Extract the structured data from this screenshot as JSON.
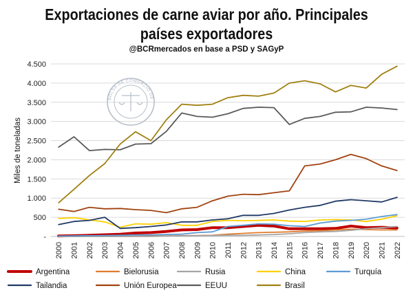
{
  "chart_data": {
    "type": "line",
    "title_line1": "Exportaciones de carne aviar por año. Principales",
    "title_line2": "países exportadores",
    "subtitle": "@BCRmercados  en base a PSD y SAGyP",
    "ylabel": "Miles de toneladas",
    "xlabel": "",
    "ylim": [
      0,
      4500
    ],
    "y_ticks": [
      0,
      500,
      1000,
      1500,
      2000,
      2500,
      3000,
      3500,
      4000,
      4500
    ],
    "y_tick_labels": [
      "-",
      "500",
      "1.000",
      "1.500",
      "2.000",
      "2.500",
      "3.000",
      "3.500",
      "4.000",
      "4.500"
    ],
    "grid": true,
    "legend_position": "bottom",
    "x": [
      "2000",
      "2001",
      "2002",
      "2003",
      "2004",
      "2005",
      "2006",
      "2007",
      "2008",
      "2009",
      "2010",
      "2011",
      "2012",
      "2013",
      "2014",
      "2015",
      "2016",
      "2017",
      "2018",
      "2019",
      "2020",
      "2021",
      "2022"
    ],
    "series": [
      {
        "name": "Argentina",
        "color": "#c00000",
        "width": 4,
        "values": [
          15,
          20,
          30,
          45,
          60,
          90,
          100,
          130,
          170,
          180,
          230,
          230,
          260,
          290,
          270,
          200,
          200,
          200,
          210,
          270,
          230,
          240,
          220
        ]
      },
      {
        "name": "Bielorusia",
        "color": "#e07b2c",
        "width": 1.8,
        "values": [
          0,
          0,
          0,
          0,
          0,
          5,
          10,
          15,
          20,
          25,
          30,
          60,
          80,
          100,
          110,
          120,
          140,
          150,
          170,
          190,
          180,
          170,
          170
        ]
      },
      {
        "name": "Rusia",
        "color": "#a5a5a5",
        "width": 1.8,
        "values": [
          0,
          0,
          0,
          0,
          0,
          0,
          0,
          10,
          15,
          20,
          25,
          30,
          30,
          40,
          50,
          70,
          100,
          120,
          130,
          160,
          200,
          230,
          260
        ]
      },
      {
        "name": "China",
        "color": "#ffd000",
        "width": 1.8,
        "values": [
          470,
          490,
          430,
          380,
          240,
          330,
          320,
          360,
          290,
          290,
          390,
          420,
          410,
          420,
          430,
          400,
          390,
          430,
          440,
          430,
          390,
          450,
          540
        ]
      },
      {
        "name": "Turquía",
        "color": "#5b9bd5",
        "width": 1.8,
        "values": [
          10,
          15,
          20,
          25,
          30,
          40,
          40,
          50,
          60,
          100,
          120,
          260,
          290,
          330,
          320,
          280,
          260,
          350,
          400,
          420,
          450,
          520,
          570
        ]
      },
      {
        "name": "Tailandia",
        "color": "#1f3864",
        "width": 1.8,
        "values": [
          310,
          390,
          420,
          500,
          210,
          230,
          260,
          300,
          380,
          380,
          430,
          460,
          550,
          550,
          600,
          690,
          760,
          810,
          920,
          960,
          930,
          900,
          1020
        ]
      },
      {
        "name": "Unión Europea",
        "color": "#a0420f",
        "width": 1.8,
        "values": [
          710,
          650,
          760,
          720,
          730,
          700,
          680,
          620,
          720,
          760,
          930,
          1050,
          1100,
          1090,
          1140,
          1190,
          1840,
          1890,
          2000,
          2140,
          2030,
          1840,
          1720
        ]
      },
      {
        "name": "EEUU",
        "color": "#595959",
        "width": 1.8,
        "values": [
          2330,
          2600,
          2240,
          2270,
          2260,
          2410,
          2420,
          2740,
          3220,
          3130,
          3110,
          3200,
          3340,
          3370,
          3360,
          2920,
          3080,
          3130,
          3240,
          3250,
          3370,
          3350,
          3310
        ]
      },
      {
        "name": "Brasil",
        "color": "#a08010",
        "width": 1.8,
        "values": [
          880,
          1230,
          1590,
          1900,
          2410,
          2730,
          2500,
          3040,
          3450,
          3420,
          3450,
          3620,
          3680,
          3660,
          3740,
          4000,
          4060,
          3980,
          3770,
          3940,
          3870,
          4230,
          4440
        ]
      }
    ]
  },
  "watermark": {
    "name": "Bolsa de Comercio de Rosario seal",
    "text": "BOLSA DE COMERCIO DE ROSARIO"
  }
}
